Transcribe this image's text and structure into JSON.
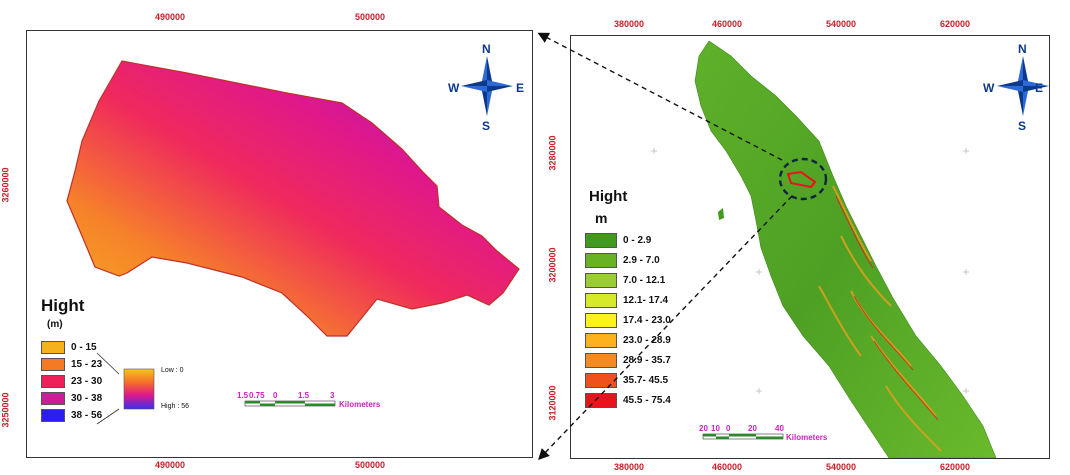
{
  "left_map": {
    "top_ticks": [
      "490000",
      "500000"
    ],
    "bottom_ticks": [
      "490000",
      "500000"
    ],
    "side_ticks": [
      "3260000",
      "3250000"
    ],
    "legend": {
      "title": "Hight",
      "unit": "(m)",
      "classes": [
        {
          "label": "0 - 15",
          "color": "#f5b21c"
        },
        {
          "label": "15 - 23",
          "color": "#f57a24"
        },
        {
          "label": "23 - 30",
          "color": "#ef1f5a"
        },
        {
          "label": "30 - 38",
          "color": "#c81e9a"
        },
        {
          "label": "38 - 56",
          "color": "#2a1ff0"
        }
      ],
      "low_label": "Low : 0",
      "high_label": "High : 56"
    },
    "scale": {
      "ticks": [
        "1.5",
        "0.75",
        "0",
        "1.5",
        "3"
      ],
      "unit": "Kilometers"
    },
    "north_arrow": {
      "n": "N",
      "s": "S",
      "e": "E",
      "w": "W"
    }
  },
  "right_map": {
    "top_ticks": [
      "380000",
      "460000",
      "540000",
      "620000"
    ],
    "bottom_ticks": [
      "380000",
      "460000",
      "540000",
      "620000"
    ],
    "side_ticks": [
      "3280000",
      "3200000",
      "3120000"
    ],
    "legend": {
      "title": "Hight",
      "unit": "m",
      "classes": [
        {
          "label": "0 - 2.9",
          "color": "#3f9a1e"
        },
        {
          "label": "2.9 - 7.0",
          "color": "#67b324"
        },
        {
          "label": "7.0 - 12.1",
          "color": "#9acd32"
        },
        {
          "label": "12.1- 17.4",
          "color": "#d6ea2a"
        },
        {
          "label": "17.4 - 23.0",
          "color": "#fff21a"
        },
        {
          "label": "23.0 - 28.9",
          "color": "#fbb21c"
        },
        {
          "label": "28.9 - 35.7",
          "color": "#f58a1e"
        },
        {
          "label": "35.7- 45.5",
          "color": "#f0501c"
        },
        {
          "label": "45.5 - 75.4",
          "color": "#e8141c"
        }
      ]
    },
    "scale": {
      "ticks": [
        "20",
        "10",
        "0",
        "20",
        "40"
      ],
      "unit": "Kilometers"
    },
    "north_arrow": {
      "n": "N",
      "s": "S",
      "e": "E",
      "w": "W"
    }
  }
}
